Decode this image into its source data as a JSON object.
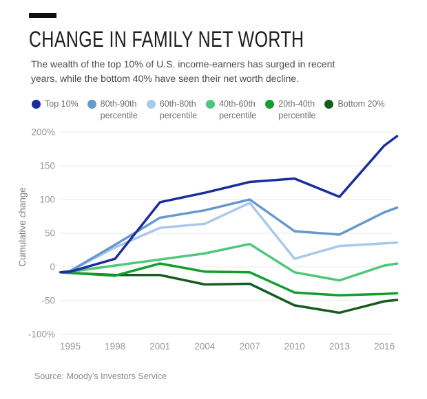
{
  "header": {
    "title": "CHANGE IN FAMILY NET WORTH",
    "subtitle_line1": "The wealth of the top 10% of U.S. income-earners has surged in recent",
    "subtitle_line2": "years, while the bottom 40% have seen their net worth decline."
  },
  "legend": {
    "items": [
      {
        "line1": "Top 10%",
        "line2": "",
        "color": "#1a2c9e"
      },
      {
        "line1": "80th-90th",
        "line2": "percentile",
        "color": "#6699cf"
      },
      {
        "line1": "60th-80th",
        "line2": "percentile",
        "color": "#a9c8ea"
      },
      {
        "line1": "40th-60th",
        "line2": "percentile",
        "color": "#4ec878"
      },
      {
        "line1": "20th-40th",
        "line2": "percentile",
        "color": "#129e2d"
      },
      {
        "line1": "Bottom 20%",
        "line2": "",
        "color": "#155c20"
      }
    ]
  },
  "chart_data": {
    "type": "line",
    "title": "Change in family net worth",
    "ylabel": "Cumulative change",
    "ylim": [
      -100,
      200
    ],
    "grid": true,
    "legend_position": "top",
    "y_tick_values": [
      200,
      150,
      100,
      50,
      0,
      -50,
      -100
    ],
    "y_tick_labels": [
      "200%",
      "150",
      "100",
      "50",
      "0",
      "-50",
      "-100%"
    ],
    "x_tick_years": [
      1995,
      1998,
      2001,
      2004,
      2007,
      2010,
      2013,
      2016
    ],
    "x_tick_labels": [
      "1995",
      "1998",
      "2001",
      "2004",
      "2007",
      "2010",
      "2013",
      "2016"
    ],
    "x_years": [
      1994.35,
      1995,
      1998,
      2001,
      2004,
      2007,
      2010,
      2013,
      2016,
      2016.85
    ],
    "series": [
      {
        "name": "Top 10%",
        "color": "#1a2c9e",
        "values": [
          -8,
          -7,
          12,
          96,
          110,
          126,
          131,
          104,
          180,
          194
        ]
      },
      {
        "name": "80th-90th percentile",
        "color": "#6699cf",
        "values": [
          -8,
          -6,
          33,
          73,
          84,
          100,
          53,
          48,
          81,
          88
        ]
      },
      {
        "name": "60th-80th percentile",
        "color": "#a9c8ea",
        "values": [
          -8,
          -6,
          29,
          58,
          64,
          95,
          12,
          31,
          35,
          36
        ]
      },
      {
        "name": "40th-60th percentile",
        "color": "#4ec878",
        "values": [
          -8,
          -7,
          2,
          11,
          20,
          34,
          -8,
          -20,
          2,
          5
        ]
      },
      {
        "name": "20th-40th percentile",
        "color": "#129e2d",
        "values": [
          -8,
          -9,
          -13,
          5,
          -7,
          -8,
          -38,
          -42,
          -40,
          -39
        ]
      },
      {
        "name": "Bottom 20%",
        "color": "#155c20",
        "values": [
          -8,
          -9,
          -12,
          -12,
          -26,
          -25,
          -57,
          -68,
          -51,
          -49
        ]
      }
    ]
  },
  "footer": {
    "source": "Source: Moody's Investors Service"
  }
}
